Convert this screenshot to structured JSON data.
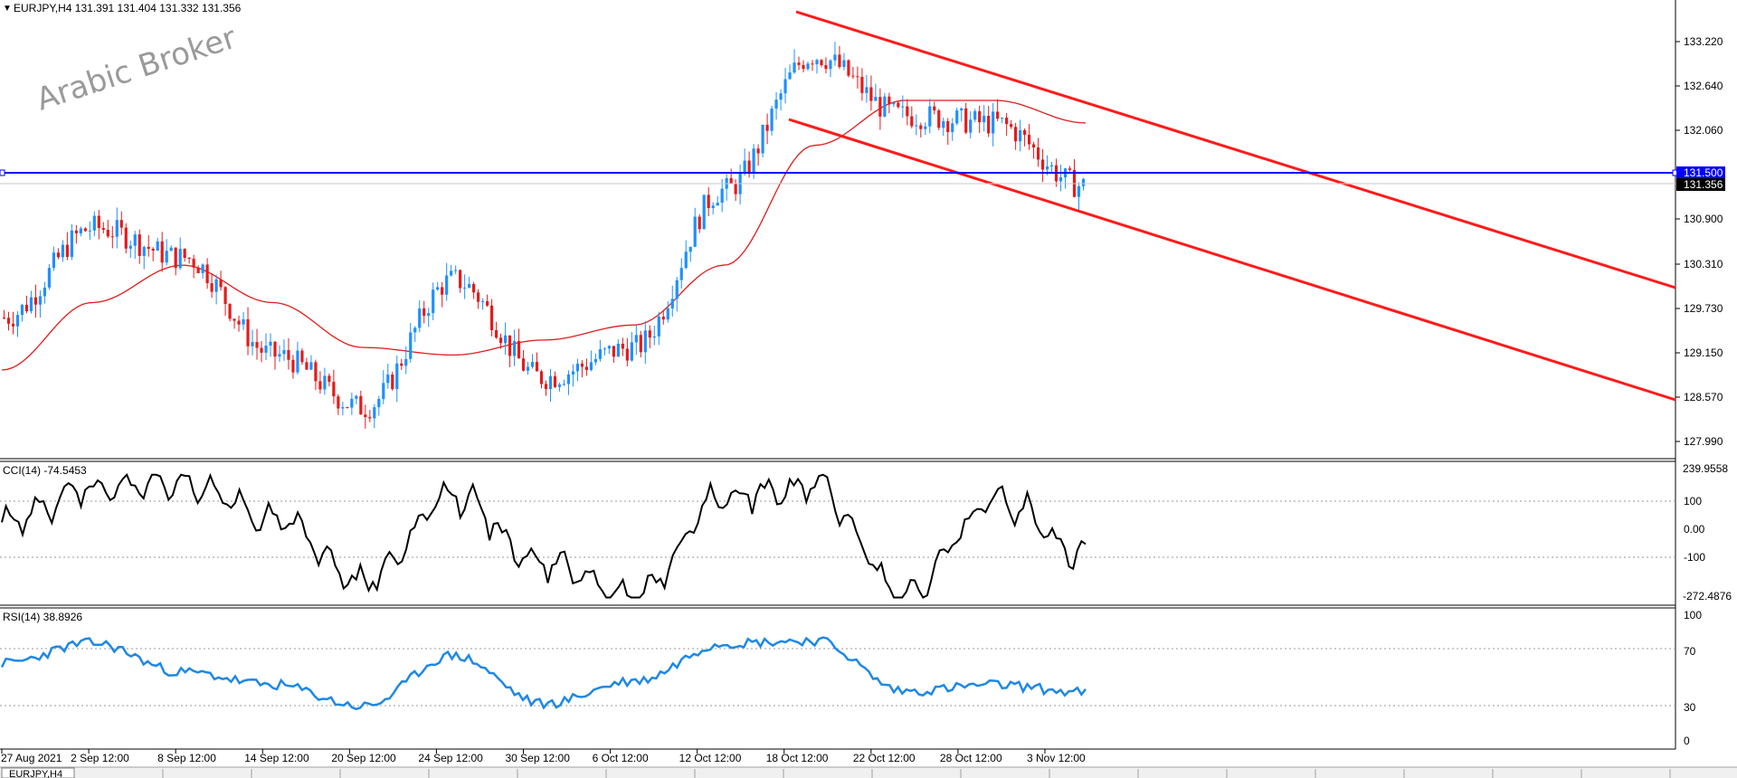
{
  "header": {
    "symbol_line": "EURJPY,H4  131.391 131.404 131.332 131.356",
    "watermark": "Arabic Broker"
  },
  "price_axis": {
    "ticks": [
      "133.220",
      "132.640",
      "132.060",
      "131.500",
      "131.356",
      "130.900",
      "130.310",
      "129.730",
      "129.150",
      "128.570",
      "127.990"
    ],
    "hline_label": "131.500",
    "bid_label": "131.356"
  },
  "cci": {
    "title": "CCI(14) -74.5453",
    "ticks": [
      "239.9558",
      "100",
      "0.00",
      "-100",
      "-272.4876"
    ]
  },
  "rsi": {
    "title": "RSI(14) 38.8926",
    "ticks": [
      "100",
      "70",
      "30",
      "0"
    ]
  },
  "time_axis": {
    "labels": [
      "27 Aug 2021",
      "2 Sep 12:00",
      "8 Sep 12:00",
      "14 Sep 12:00",
      "20 Sep 12:00",
      "24 Sep 12:00",
      "30 Sep 12:00",
      "6 Oct 12:00",
      "12 Oct 12:00",
      "18 Oct 12:00",
      "22 Oct 12:00",
      "28 Oct 12:00",
      "3 Nov 12:00"
    ]
  },
  "colors": {
    "bull": "#1e90ff",
    "bear": "#e31b1b",
    "ma": "#e31b1b",
    "channel": "#ff1a1a",
    "hline": "#0000ff",
    "cci": "#000000",
    "rsi": "#1e88e5"
  },
  "chart_data": {
    "type": "candlestick",
    "symbol": "EURJPY",
    "timeframe": "H4",
    "x": [
      "27 Aug 2021",
      "2 Sep 12:00",
      "8 Sep 12:00",
      "14 Sep 12:00",
      "20 Sep 12:00",
      "24 Sep 12:00",
      "30 Sep 12:00",
      "6 Oct 12:00",
      "12 Oct 12:00",
      "18 Oct 12:00",
      "22 Oct 12:00",
      "28 Oct 12:00",
      "3 Nov 12:00"
    ],
    "close": [
      129.6,
      130.8,
      130.4,
      129.1,
      128.4,
      130.1,
      128.8,
      129.2,
      131.3,
      133.1,
      132.3,
      132.2,
      131.36
    ],
    "moving_average": [
      128.9,
      129.8,
      130.3,
      129.8,
      129.2,
      129.1,
      129.3,
      129.5,
      130.3,
      131.9,
      132.5,
      132.5,
      132.2
    ],
    "ylim": [
      127.8,
      133.6
    ],
    "horizontal_line": 131.5,
    "last_price": 131.356,
    "channel_upper": [
      [
        133.5,
        "18 Oct 12:00"
      ],
      [
        130.0,
        "end"
      ]
    ],
    "channel_lower": [
      [
        132.3,
        "18 Oct 12:00"
      ],
      [
        128.6,
        "end"
      ]
    ],
    "cci_values": [
      40,
      180,
      200,
      60,
      -200,
      150,
      -120,
      -260,
      150,
      190,
      -250,
      130,
      -74.5453
    ],
    "cci_ylim": [
      -272.4876,
      239.9558
    ],
    "rsi_values": [
      62,
      78,
      55,
      45,
      28,
      68,
      30,
      48,
      78,
      80,
      40,
      45,
      38.8926
    ],
    "rsi_ylim": [
      0,
      100
    ]
  },
  "tabs": [
    "EURJPY,H4"
  ]
}
